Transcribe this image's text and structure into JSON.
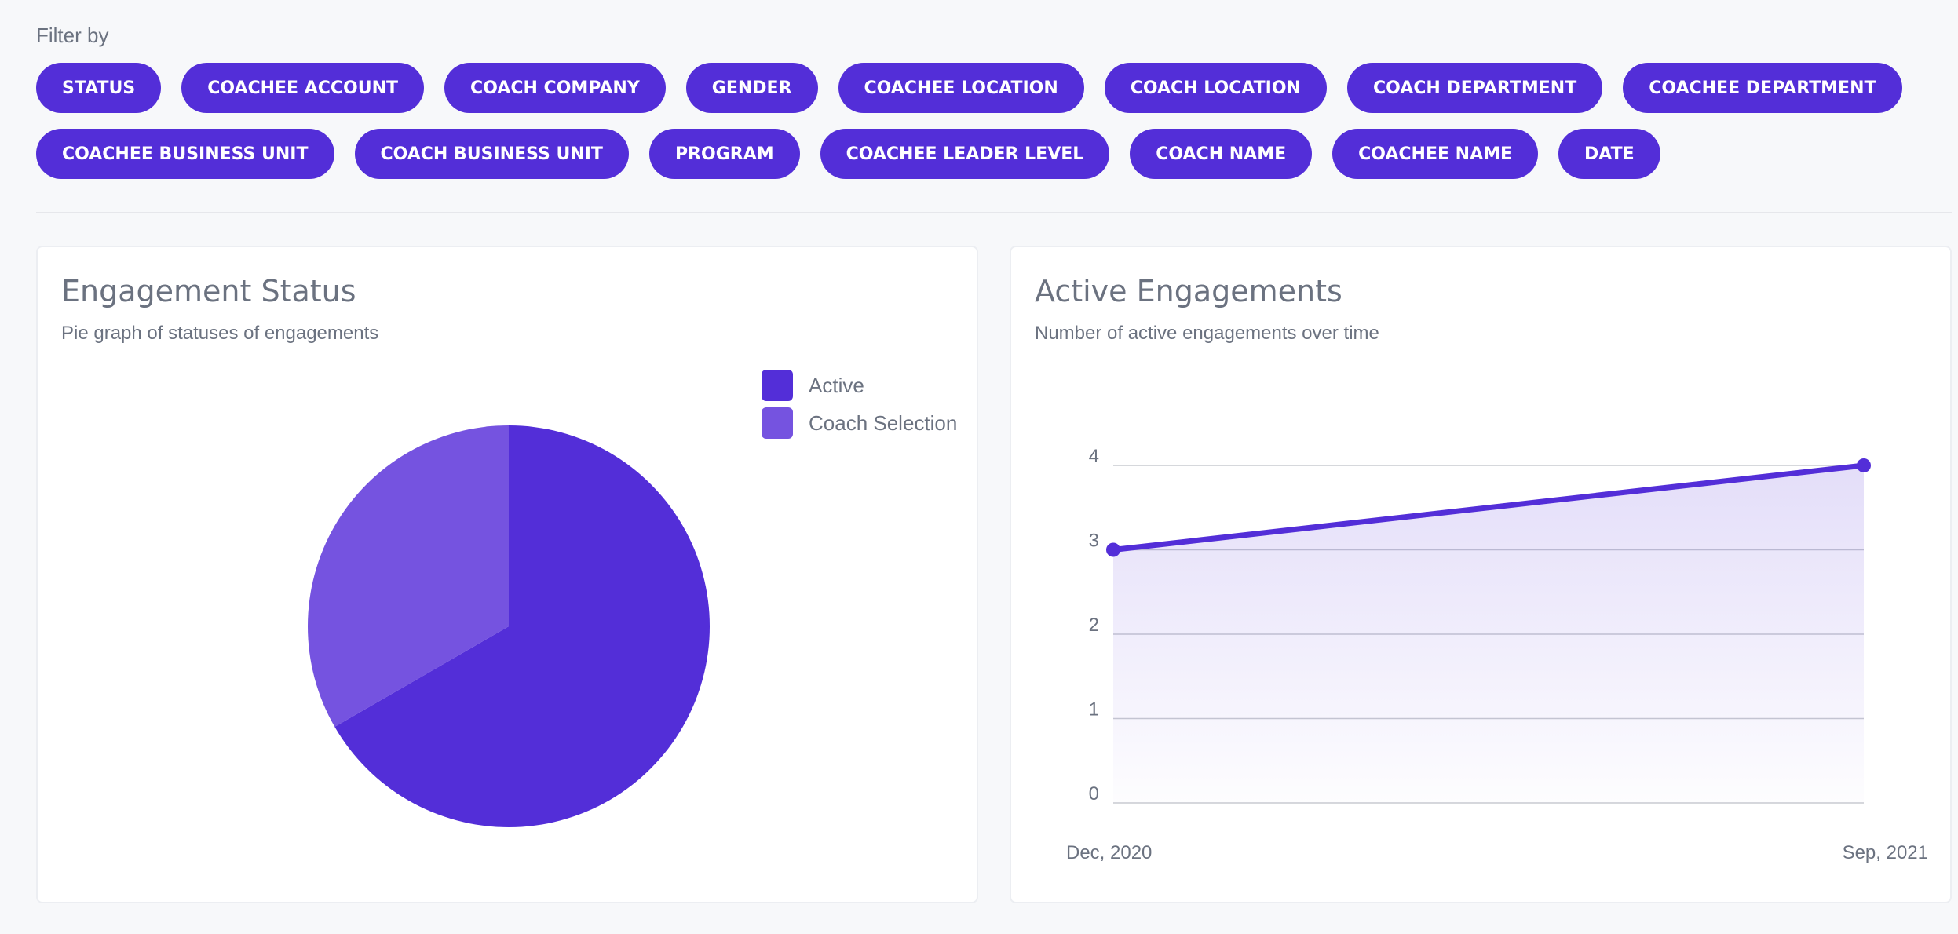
{
  "filter": {
    "label": "Filter by",
    "chips": [
      "STATUS",
      "COACHEE ACCOUNT",
      "COACH COMPANY",
      "GENDER",
      "COACHEE LOCATION",
      "COACH LOCATION",
      "COACH DEPARTMENT",
      "COACHEE DEPARTMENT",
      "COACHEE BUSINESS UNIT",
      "COACH BUSINESS UNIT",
      "PROGRAM",
      "COACHEE LEADER LEVEL",
      "COACH NAME",
      "COACHEE NAME",
      "DATE"
    ]
  },
  "colors": {
    "accent": "#532ed8",
    "accent_light": "#7553e0",
    "text_muted": "#6b7280"
  },
  "engagement_status": {
    "title": "Engagement Status",
    "subtitle": "Pie graph of statuses of engagements"
  },
  "active_engagements": {
    "title": "Active Engagements",
    "subtitle": "Number of active engagements over time"
  },
  "chart_data": [
    {
      "type": "pie",
      "labels": [
        "Active",
        "Coach Selection"
      ],
      "values": [
        2,
        1
      ],
      "colors": [
        "#532ed8",
        "#7553e0"
      ],
      "legend": "top-right"
    },
    {
      "type": "area",
      "x": [
        "Dec, 2020",
        "Sep, 2021"
      ],
      "values": [
        3,
        4
      ],
      "ylim": [
        0,
        4
      ],
      "yticks": [
        0,
        1,
        2,
        3,
        4
      ],
      "grid": true,
      "color": "#532ed8"
    }
  ]
}
